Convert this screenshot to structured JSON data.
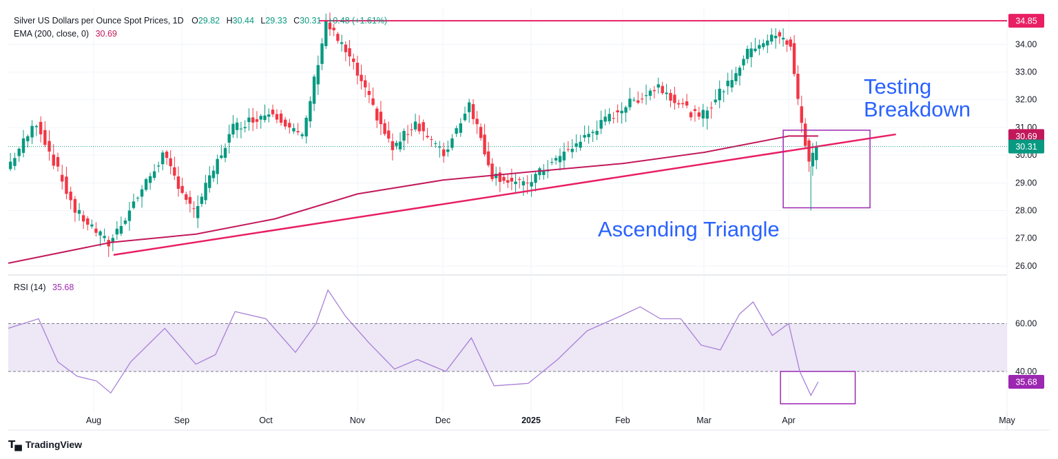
{
  "header": {
    "title": "Silver US Dollars per Ounce Spot Prices, 1D",
    "o_label": "O",
    "o": "29.82",
    "h_label": "H",
    "h": "30.44",
    "l_label": "L",
    "l": "29.33",
    "c_label": "C",
    "c": "30.31",
    "change": "+0.48 (+1.61%)",
    "ema_label": "EMA (200, close, 0)",
    "ema_value": "30.69",
    "rsi_label": "RSI (14)",
    "rsi_value": "35.68"
  },
  "brand": {
    "name": "TradingView"
  },
  "annotations": {
    "ascending_triangle": "Ascending Triangle",
    "testing_line1": "Testing",
    "testing_line2": "Breakdown"
  },
  "colors": {
    "up": "#089981",
    "down": "#f23645",
    "ema": "#c2185b",
    "trendline": "#e91e63",
    "rsi": "#9c27b0",
    "annotation": "#2962ff",
    "box": "#9c27b0",
    "rsi_band": "#ede7f6"
  },
  "chart_data": [
    {
      "type": "candlestick",
      "title": "Silver US Dollars per Ounce Spot Prices, 1D",
      "ylim": [
        25.7,
        35.3
      ],
      "y_ticks": [
        "26.00",
        "27.00",
        "28.00",
        "29.00",
        "30.00",
        "31.00",
        "32.00",
        "33.00",
        "34.00"
      ],
      "x_ticks": [
        "Aug",
        "Sep",
        "Oct",
        "Nov",
        "Dec",
        "2025",
        "Feb",
        "Mar",
        "Apr",
        "May"
      ],
      "ohlc_keypoints": [
        [
          "Jul 1",
          29.5
        ],
        [
          "Jul 12",
          31.2
        ],
        [
          "Jul 26",
          28.0
        ],
        [
          "Aug 7",
          26.8
        ],
        [
          "Aug 26",
          30.0
        ],
        [
          "Sep 6",
          27.9
        ],
        [
          "Sep 20",
          31.0
        ],
        [
          "Oct 4",
          31.6
        ],
        [
          "Oct 14",
          30.6
        ],
        [
          "Oct 22",
          34.8
        ],
        [
          "Oct 30",
          33.5
        ],
        [
          "Nov 14",
          30.2
        ],
        [
          "Nov 22",
          31.2
        ],
        [
          "Dec 2",
          30.0
        ],
        [
          "Dec 11",
          31.9
        ],
        [
          "Dec 19",
          29.3
        ],
        [
          "Dec 30",
          28.9
        ],
        [
          "Jan 17",
          30.4
        ],
        [
          "Jan 31",
          31.6
        ],
        [
          "Feb 14",
          32.5
        ],
        [
          "Feb 28",
          31.3
        ],
        [
          "Mar 12",
          32.8
        ],
        [
          "Mar 19",
          33.9
        ],
        [
          "Mar 28",
          34.3
        ],
        [
          "Apr 2",
          34.0
        ],
        [
          "Apr 4",
          31.9
        ],
        [
          "Apr 7",
          29.7
        ],
        [
          "Apr 9",
          30.31
        ]
      ],
      "ema_200": {
        "name": "EMA (200, close, 0)",
        "last": 30.69,
        "points": [
          [
            "Jul 1",
            26.1
          ],
          [
            "Aug 7",
            26.85
          ],
          [
            "Sep 6",
            27.15
          ],
          [
            "Oct 4",
            27.7
          ],
          [
            "Nov 1",
            28.6
          ],
          [
            "Dec 1",
            29.1
          ],
          [
            "Jan 1",
            29.4
          ],
          [
            "Feb 1",
            29.7
          ],
          [
            "Mar 1",
            30.1
          ],
          [
            "Apr 1",
            30.69
          ]
        ]
      },
      "resistance": 34.85,
      "support_trendline": [
        [
          "Aug 8",
          26.4
        ],
        [
          "Apr 30",
          30.75
        ]
      ],
      "last_close": 30.31
    },
    {
      "type": "line",
      "title": "RSI (14)",
      "ylim": [
        23,
        80
      ],
      "y_ticks": [
        "40.00",
        "60.00"
      ],
      "band": [
        40,
        60
      ],
      "last": 35.68,
      "points": [
        [
          "Jul 1",
          58
        ],
        [
          "Jul 12",
          62
        ],
        [
          "Jul 19",
          44
        ],
        [
          "Jul 26",
          38
        ],
        [
          "Aug 2",
          36
        ],
        [
          "Aug 7",
          31
        ],
        [
          "Aug 14",
          44
        ],
        [
          "Aug 26",
          58
        ],
        [
          "Sep 6",
          43
        ],
        [
          "Sep 13",
          47
        ],
        [
          "Sep 20",
          65
        ],
        [
          "Oct 1",
          62
        ],
        [
          "Oct 11",
          48
        ],
        [
          "Oct 18",
          60
        ],
        [
          "Oct 22",
          74
        ],
        [
          "Oct 28",
          63
        ],
        [
          "Nov 5",
          52
        ],
        [
          "Nov 14",
          41
        ],
        [
          "Nov 22",
          45
        ],
        [
          "Dec 2",
          40
        ],
        [
          "Dec 11",
          54
        ],
        [
          "Dec 19",
          34
        ],
        [
          "Dec 31",
          35
        ],
        [
          "Jan 10",
          45
        ],
        [
          "Jan 20",
          57
        ],
        [
          "Jan 31",
          63
        ],
        [
          "Feb 7",
          67
        ],
        [
          "Feb 14",
          62
        ],
        [
          "Feb 21",
          62
        ],
        [
          "Feb 28",
          51
        ],
        [
          "Mar 7",
          49
        ],
        [
          "Mar 14",
          64
        ],
        [
          "Mar 19",
          69
        ],
        [
          "Mar 26",
          55
        ],
        [
          "Apr 1",
          60
        ],
        [
          "Apr 4",
          40
        ],
        [
          "Apr 7",
          30
        ],
        [
          "Apr 9",
          35.68
        ]
      ]
    }
  ]
}
